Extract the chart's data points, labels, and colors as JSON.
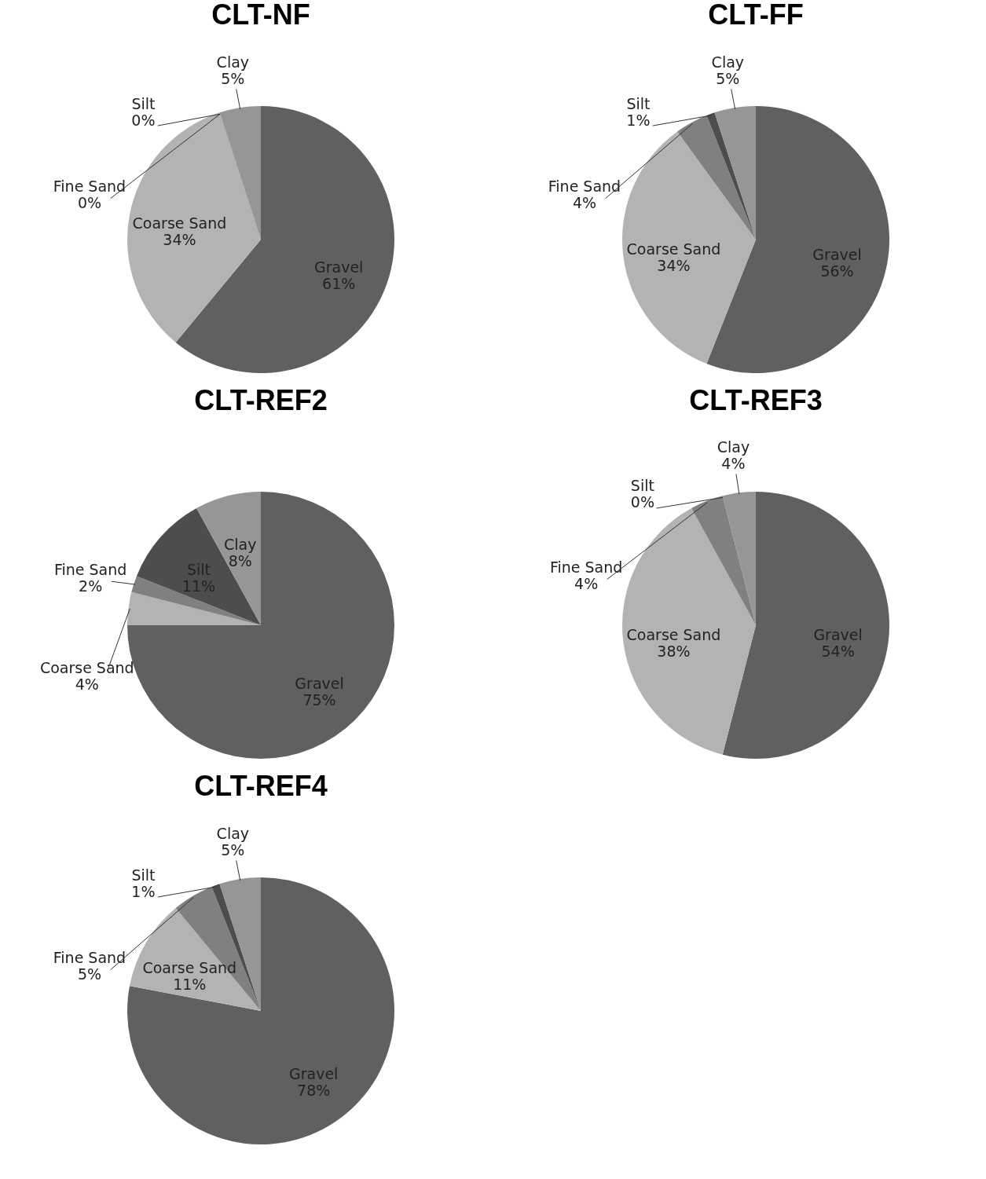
{
  "chart_data": [
    {
      "type": "pie",
      "title": "CLT-NF",
      "categories": [
        "Gravel",
        "Coarse Sand",
        "Fine Sand",
        "Silt",
        "Clay"
      ],
      "values": [
        61,
        34,
        0,
        0,
        5
      ],
      "value_labels": [
        "61%",
        "34%",
        "0%",
        "0%",
        "5%"
      ],
      "colors": [
        "#606060",
        "#b3b3b3",
        "#808080",
        "#4d4d4d",
        "#969696"
      ],
      "legend": false
    },
    {
      "type": "pie",
      "title": "CLT-FF",
      "categories": [
        "Gravel",
        "Coarse Sand",
        "Fine Sand",
        "Silt",
        "Clay"
      ],
      "values": [
        56,
        34,
        4,
        1,
        5
      ],
      "value_labels": [
        "56%",
        "34%",
        "4%",
        "1%",
        "5%"
      ],
      "colors": [
        "#606060",
        "#b3b3b3",
        "#808080",
        "#4d4d4d",
        "#969696"
      ],
      "legend": false
    },
    {
      "type": "pie",
      "title": "CLT-REF2",
      "categories": [
        "Gravel",
        "Coarse Sand",
        "Fine Sand",
        "Silt",
        "Clay"
      ],
      "values": [
        75,
        4,
        2,
        11,
        8
      ],
      "value_labels": [
        "75%",
        "4%",
        "2%",
        "11%",
        "8%"
      ],
      "colors": [
        "#606060",
        "#b3b3b3",
        "#808080",
        "#4d4d4d",
        "#969696"
      ],
      "legend": false
    },
    {
      "type": "pie",
      "title": "CLT-REF3",
      "categories": [
        "Gravel",
        "Coarse Sand",
        "Fine Sand",
        "Silt",
        "Clay"
      ],
      "values": [
        54,
        38,
        4,
        0,
        4
      ],
      "value_labels": [
        "54%",
        "38%",
        "4%",
        "0%",
        "4%"
      ],
      "colors": [
        "#606060",
        "#b3b3b3",
        "#808080",
        "#4d4d4d",
        "#969696"
      ],
      "legend": false
    },
    {
      "type": "pie",
      "title": "CLT-REF4",
      "categories": [
        "Gravel",
        "Coarse Sand",
        "Fine Sand",
        "Silt",
        "Clay"
      ],
      "values": [
        78,
        11,
        5,
        1,
        5
      ],
      "value_labels": [
        "78%",
        "11%",
        "5%",
        "1%",
        "5%"
      ],
      "colors": [
        "#606060",
        "#b3b3b3",
        "#808080",
        "#4d4d4d",
        "#969696"
      ],
      "legend": false
    }
  ]
}
